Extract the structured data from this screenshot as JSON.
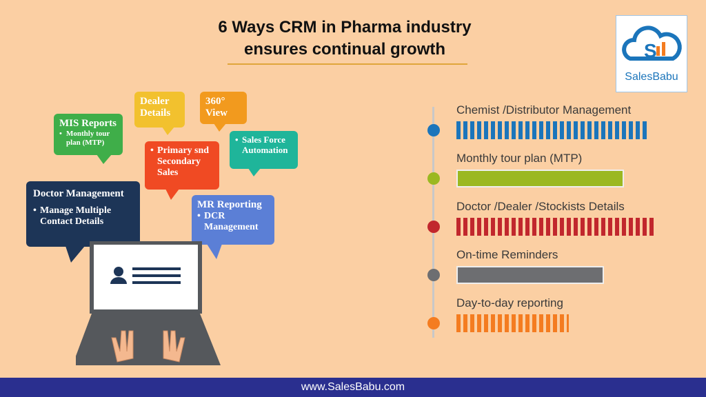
{
  "header": {
    "title_lines": [
      "6 Ways CRM in Pharma industry",
      "ensures continual growth"
    ]
  },
  "logo": {
    "label": "SalesBabu"
  },
  "bubbles": [
    {
      "title": "MIS Reports",
      "items": [
        "Monthly tour plan (MTP)"
      ]
    },
    {
      "title": "Dealer Details"
    },
    {
      "title": "360° View"
    },
    {
      "items": [
        "Sales Force Automation"
      ]
    },
    {
      "items": [
        "Primary snd Secondary Sales"
      ]
    },
    {
      "title": "Doctor Management",
      "items": [
        "Manage Multiple Contact Details"
      ]
    },
    {
      "title": "MR Reporting",
      "items": [
        "DCR Management"
      ]
    }
  ],
  "features": [
    "Chemist /Distributor Management",
    "Monthly tour plan (MTP)",
    "Doctor /Dealer /Stockists Details",
    "On-time Reminders",
    "Day-to-day reporting"
  ],
  "footer": {
    "url": "www.SalesBabu.com"
  }
}
